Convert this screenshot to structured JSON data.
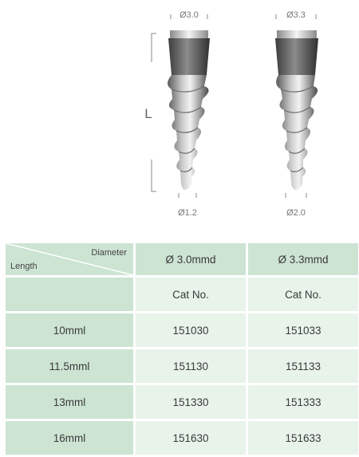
{
  "figure": {
    "implants": [
      {
        "top_diameter": "Ø3.0",
        "tip_diameter": "Ø1.2"
      },
      {
        "top_diameter": "Ø3.3",
        "tip_diameter": "Ø2.0"
      }
    ],
    "length_label": "L"
  },
  "table": {
    "corner_diameter": "Diameter",
    "corner_length": "Length",
    "columns": [
      "Ø 3.0mmd",
      "Ø 3.3mmd"
    ],
    "subheader": [
      "Cat No.",
      "Cat No."
    ],
    "rows": [
      {
        "length": "10mml",
        "values": [
          "151030",
          "151033"
        ]
      },
      {
        "length": "11.5mml",
        "values": [
          "151130",
          "151133"
        ]
      },
      {
        "length": "13mml",
        "values": [
          "151330",
          "151333"
        ]
      },
      {
        "length": "16mml",
        "values": [
          "151630",
          "151633"
        ]
      }
    ]
  }
}
